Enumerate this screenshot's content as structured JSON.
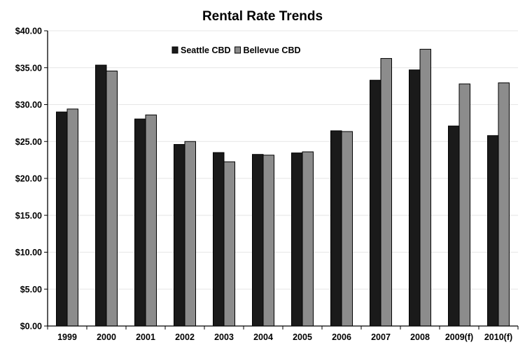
{
  "chart_data": {
    "type": "bar",
    "title": "Rental Rate Trends",
    "xlabel": "",
    "ylabel": "",
    "categories": [
      "1999",
      "2000",
      "2001",
      "2002",
      "2003",
      "2004",
      "2005",
      "2006",
      "2007",
      "2008",
      "2009(f)",
      "2010(f)"
    ],
    "series": [
      {
        "name": "Seattle CBD",
        "color": "#1a1a1a",
        "values": [
          29.0,
          35.35,
          28.05,
          24.6,
          23.5,
          23.25,
          23.45,
          26.45,
          33.3,
          34.7,
          27.1,
          25.8
        ]
      },
      {
        "name": "Bellevue CBD",
        "color": "#8c8c8c",
        "values": [
          29.4,
          34.55,
          28.6,
          25.0,
          22.25,
          23.15,
          23.6,
          26.35,
          36.25,
          37.5,
          32.8,
          32.95
        ]
      }
    ],
    "ylim": [
      0,
      40
    ],
    "yticks": [
      0,
      5,
      10,
      15,
      20,
      25,
      30,
      35,
      40
    ],
    "ytick_labels": [
      "$0.00",
      "$5.00",
      "$10.00",
      "$15.00",
      "$20.00",
      "$25.00",
      "$30.00",
      "$35.00",
      "$40.00"
    ],
    "grid": true,
    "legend_position": "top-left"
  }
}
